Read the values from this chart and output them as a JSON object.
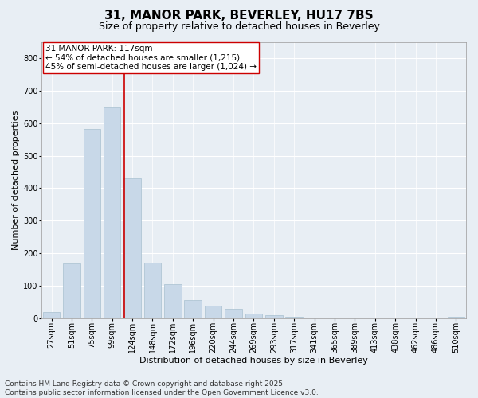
{
  "title": "31, MANOR PARK, BEVERLEY, HU17 7BS",
  "subtitle": "Size of property relative to detached houses in Beverley",
  "xlabel": "Distribution of detached houses by size in Beverley",
  "ylabel": "Number of detached properties",
  "bar_color": "#c8d8e8",
  "bar_edge_color": "#a8c0d0",
  "categories": [
    "27sqm",
    "51sqm",
    "75sqm",
    "99sqm",
    "124sqm",
    "148sqm",
    "172sqm",
    "196sqm",
    "220sqm",
    "244sqm",
    "269sqm",
    "293sqm",
    "317sqm",
    "341sqm",
    "365sqm",
    "389sqm",
    "413sqm",
    "438sqm",
    "462sqm",
    "486sqm",
    "510sqm"
  ],
  "values": [
    20,
    168,
    583,
    648,
    430,
    172,
    104,
    55,
    38,
    30,
    14,
    9,
    5,
    3,
    2,
    0,
    0,
    0,
    0,
    0,
    5
  ],
  "ylim": [
    0,
    850
  ],
  "yticks": [
    0,
    100,
    200,
    300,
    400,
    500,
    600,
    700,
    800
  ],
  "vline_x": 3.62,
  "vline_color": "#cc0000",
  "annotation_text": "31 MANOR PARK: 117sqm\n← 54% of detached houses are smaller (1,215)\n45% of semi-detached houses are larger (1,024) →",
  "annotation_box_edge": "#cc0000",
  "footer_line1": "Contains HM Land Registry data © Crown copyright and database right 2025.",
  "footer_line2": "Contains public sector information licensed under the Open Government Licence v3.0.",
  "background_color": "#e8eef4",
  "grid_color": "#ffffff",
  "title_fontsize": 11,
  "subtitle_fontsize": 9,
  "axis_label_fontsize": 8,
  "tick_fontsize": 7,
  "footer_fontsize": 6.5,
  "annotation_fontsize": 7.5
}
